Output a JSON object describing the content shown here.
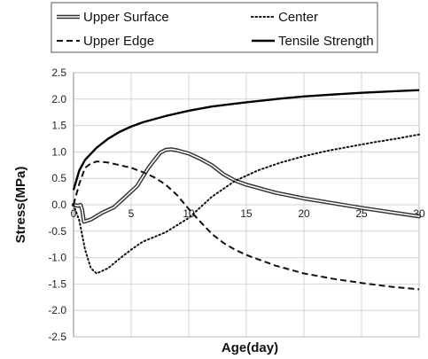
{
  "chart_data": {
    "type": "line",
    "xlabel": "Age(day)",
    "ylabel": "Stress(MPa)",
    "xlim": [
      0,
      30
    ],
    "ylim": [
      -2.5,
      2.5
    ],
    "x_ticks": [
      "0",
      "5",
      "10",
      "15",
      "20",
      "25",
      "30"
    ],
    "y_ticks": [
      "2.5",
      "2.0",
      "1.5",
      "1.0",
      "0.5",
      "0.0",
      "-0.5",
      "-1.0",
      "-1.5",
      "-2.0",
      "-2.5"
    ],
    "x_tick_values": [
      0,
      5,
      10,
      15,
      20,
      25,
      30
    ],
    "y_tick_values": [
      2.5,
      2.0,
      1.5,
      1.0,
      0.5,
      0.0,
      -0.5,
      -1.0,
      -1.5,
      -2.0,
      -2.5
    ],
    "grid": true,
    "legend_position": "top",
    "series": [
      {
        "name": "Upper Surface",
        "style": "double",
        "color": "#333333",
        "points": [
          [
            0,
            0.0
          ],
          [
            0.4,
            -0.02
          ],
          [
            0.6,
            0.0
          ],
          [
            0.75,
            -0.1
          ],
          [
            0.9,
            -0.32
          ],
          [
            1.5,
            -0.28
          ],
          [
            2.5,
            -0.15
          ],
          [
            3.5,
            -0.05
          ],
          [
            4.5,
            0.15
          ],
          [
            5.5,
            0.35
          ],
          [
            6.5,
            0.7
          ],
          [
            7.5,
            0.98
          ],
          [
            8.0,
            1.04
          ],
          [
            8.5,
            1.05
          ],
          [
            9.0,
            1.03
          ],
          [
            10.0,
            0.97
          ],
          [
            11.0,
            0.87
          ],
          [
            12.0,
            0.75
          ],
          [
            13.0,
            0.58
          ],
          [
            14.0,
            0.46
          ],
          [
            15.0,
            0.38
          ],
          [
            17.5,
            0.23
          ],
          [
            20.0,
            0.12
          ],
          [
            22.5,
            0.03
          ],
          [
            25.0,
            -0.06
          ],
          [
            27.5,
            -0.14
          ],
          [
            30.0,
            -0.22
          ]
        ]
      },
      {
        "name": "Center",
        "style": "dotted",
        "color": "#111111",
        "points": [
          [
            0,
            0.0
          ],
          [
            0.5,
            -0.3
          ],
          [
            1.0,
            -0.85
          ],
          [
            1.5,
            -1.2
          ],
          [
            2.0,
            -1.3
          ],
          [
            3.0,
            -1.2
          ],
          [
            4.0,
            -1.02
          ],
          [
            5.0,
            -0.85
          ],
          [
            6.0,
            -0.7
          ],
          [
            8.0,
            -0.52
          ],
          [
            10.0,
            -0.25
          ],
          [
            12.0,
            0.15
          ],
          [
            14.0,
            0.45
          ],
          [
            16.0,
            0.65
          ],
          [
            18.0,
            0.8
          ],
          [
            20.0,
            0.92
          ],
          [
            22.0,
            1.02
          ],
          [
            24.0,
            1.1
          ],
          [
            26.0,
            1.18
          ],
          [
            28.0,
            1.25
          ],
          [
            30.0,
            1.33
          ]
        ]
      },
      {
        "name": "Upper Edge",
        "style": "dashed",
        "color": "#111111",
        "points": [
          [
            0,
            0.0
          ],
          [
            0.5,
            0.4
          ],
          [
            1.0,
            0.7
          ],
          [
            1.5,
            0.78
          ],
          [
            2.0,
            0.82
          ],
          [
            3.0,
            0.8
          ],
          [
            4.0,
            0.75
          ],
          [
            5.0,
            0.7
          ],
          [
            6.0,
            0.62
          ],
          [
            7.0,
            0.52
          ],
          [
            8.0,
            0.38
          ],
          [
            9.0,
            0.18
          ],
          [
            10.0,
            -0.08
          ],
          [
            11.0,
            -0.32
          ],
          [
            12.0,
            -0.55
          ],
          [
            13.0,
            -0.72
          ],
          [
            14.0,
            -0.85
          ],
          [
            15.0,
            -0.95
          ],
          [
            17.5,
            -1.15
          ],
          [
            20.0,
            -1.3
          ],
          [
            22.5,
            -1.4
          ],
          [
            25.0,
            -1.48
          ],
          [
            27.5,
            -1.55
          ],
          [
            30.0,
            -1.6
          ]
        ]
      },
      {
        "name": "Tensile Strength",
        "style": "solid",
        "color": "#000000",
        "points": [
          [
            0,
            0.28
          ],
          [
            0.5,
            0.65
          ],
          [
            1.0,
            0.85
          ],
          [
            2.0,
            1.08
          ],
          [
            3.0,
            1.25
          ],
          [
            4.0,
            1.38
          ],
          [
            5.0,
            1.48
          ],
          [
            6.0,
            1.56
          ],
          [
            8.0,
            1.68
          ],
          [
            10.0,
            1.78
          ],
          [
            12.0,
            1.86
          ],
          [
            15.0,
            1.94
          ],
          [
            18.0,
            2.01
          ],
          [
            20.0,
            2.05
          ],
          [
            22.0,
            2.08
          ],
          [
            25.0,
            2.12
          ],
          [
            28.0,
            2.15
          ],
          [
            30.0,
            2.17
          ]
        ]
      }
    ]
  }
}
